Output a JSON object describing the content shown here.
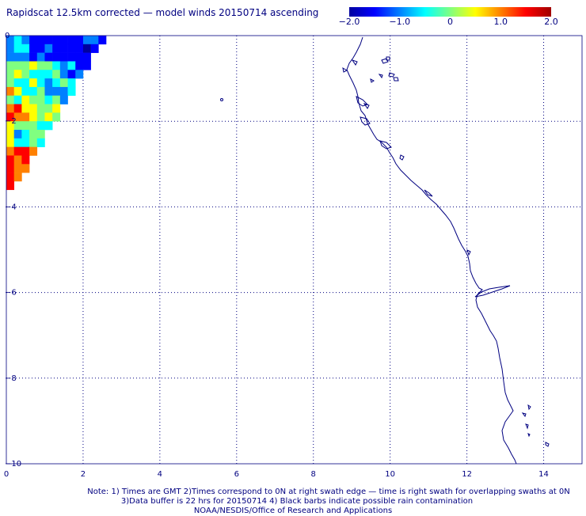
{
  "title": "Rapidscat 12.5km corrected — model winds 20150714 ascending",
  "colorbar": {
    "ticks": [
      "−2.0",
      "−1.0",
      "0",
      "1.0",
      "2.0"
    ],
    "tick_values": [
      -2.0,
      -1.0,
      0,
      1.0,
      2.0
    ],
    "range": [
      -2.0,
      2.0
    ],
    "colors": [
      "#0000a0",
      "#0000ff",
      "#0080ff",
      "#00ffff",
      "#80ff80",
      "#ffff00",
      "#ff8000",
      "#ff0000",
      "#a00000"
    ]
  },
  "axes": {
    "x_ticks": [
      "0",
      "2",
      "4",
      "6",
      "8",
      "10",
      "12",
      "14"
    ],
    "y_ticks": [
      "0",
      "−2",
      "−4",
      "−6",
      "−8",
      "−10"
    ],
    "x_range": [
      0,
      15
    ],
    "y_range": [
      -10,
      0
    ],
    "grid": "dotted",
    "grid_color": "#000080"
  },
  "wind_field": {
    "cell_size_deg": 0.2,
    "extent": "upper-left triangle, x 0–2.4, y 0 to −3.6"
  },
  "coastline_color": "#000080",
  "notes": [
    "Note: 1) Times are GMT 2)Times correspond to 0N at right swath edge — time is right swath for overlapping swaths at 0N",
    "3)Data buffer is 22 hrs for 20150714 4) Black barbs indicate possible rain contamination",
    "NOAA/NESDIS/Office of Research and Applications"
  ]
}
